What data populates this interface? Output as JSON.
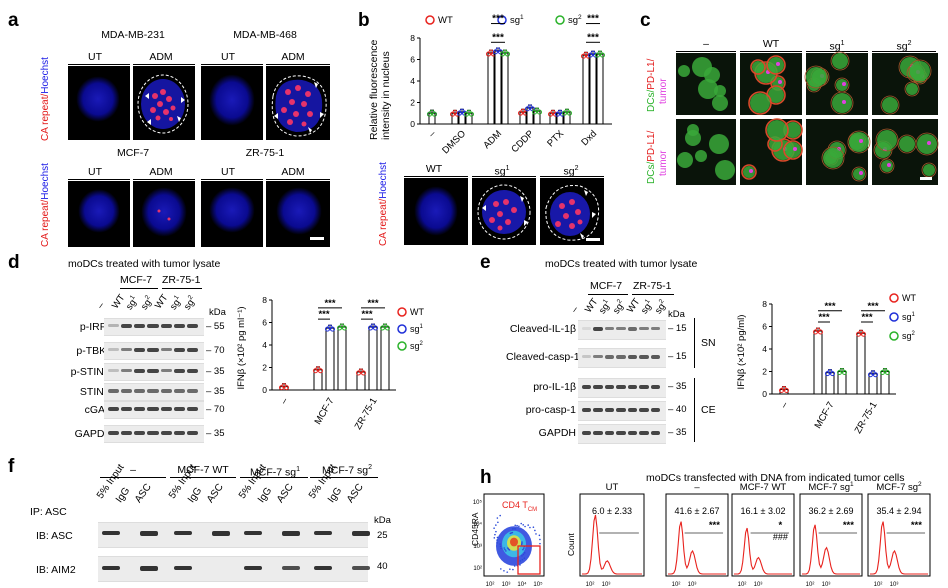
{
  "panel_a": {
    "label": "a",
    "line_mda231": "MDA-MB-231",
    "line_mda468": "MDA-MB-468",
    "line_mcf7": "MCF-7",
    "line_zr751": "ZR-75-1",
    "cond_ut": "UT",
    "cond_adm": "ADM",
    "ylab_red": "CA repeat/",
    "ylab_blue": "Hoechst"
  },
  "panel_b": {
    "label": "b",
    "legend": [
      "WT",
      "sg1",
      "sg2"
    ],
    "legend_sup": [
      "",
      "1",
      "2"
    ],
    "legend_base": [
      "WT",
      "sg",
      "sg"
    ],
    "ylabel_line1": "Relative fluorescence",
    "ylabel_line2": "intensity in nucleus",
    "yticks": [
      "0",
      "2",
      "4",
      "6",
      "8"
    ],
    "sig": "***",
    "img_labels": [
      "WT",
      "sg",
      "sg"
    ],
    "img_sups": [
      "",
      "1",
      "2"
    ],
    "ylab_red": "CA repeat/",
    "ylab_blue": "Hoechst"
  },
  "chart_data": [
    {
      "type": "bar",
      "panel": "b",
      "categories": [
        "–",
        "DMSO",
        "ADM",
        "CDDP",
        "PTX",
        "Dxd"
      ],
      "series": [
        {
          "name": "WT",
          "values": [
            1.0,
            1.0,
            6.6,
            1.1,
            1.0,
            6.4
          ]
        },
        {
          "name": "sg1",
          "values": [
            1.0,
            1.1,
            6.8,
            1.5,
            1.0,
            6.5
          ]
        },
        {
          "name": "sg2",
          "values": [
            1.0,
            1.0,
            6.6,
            1.2,
            1.1,
            6.5
          ]
        }
      ],
      "ylabel": "Relative fluorescence intensity in nucleus",
      "ylim": [
        0,
        8
      ],
      "colors": [
        "#e8231e",
        "#1f2fd8",
        "#2ab22a"
      ]
    },
    {
      "type": "bar",
      "panel": "d",
      "categories": [
        "–",
        "MCF-7",
        "ZR-75-1"
      ],
      "series": [
        {
          "name": "WT",
          "values": [
            0.3,
            1.8,
            1.6
          ]
        },
        {
          "name": "sg1",
          "values": [
            null,
            5.5,
            5.6
          ]
        },
        {
          "name": "sg2",
          "values": [
            null,
            5.6,
            5.6
          ]
        }
      ],
      "ylabel": "IFNβ (×10² pg ml⁻¹)",
      "ylim": [
        0,
        8
      ],
      "colors": [
        "#e8231e",
        "#1f2fd8",
        "#2ab22a"
      ]
    },
    {
      "type": "bar",
      "panel": "e",
      "categories": [
        "–",
        "MCF-7",
        "ZR-75-1"
      ],
      "series": [
        {
          "name": "WT",
          "values": [
            0.4,
            5.6,
            5.4
          ]
        },
        {
          "name": "sg1",
          "values": [
            null,
            1.9,
            1.8
          ]
        },
        {
          "name": "sg2",
          "values": [
            null,
            2.0,
            2.0
          ]
        }
      ],
      "ylabel": "IFNβ (×10² pg/ml)",
      "ylim": [
        0,
        8
      ],
      "colors": [
        "#e8231e",
        "#1f2fd8",
        "#2ab22a"
      ]
    }
  ],
  "panel_c": {
    "label": "c",
    "cols": [
      "–",
      "WT",
      "sg",
      "sg"
    ],
    "col_sups": [
      "",
      "",
      "1",
      "2"
    ],
    "ylab_dcs": "DCs/",
    "ylab_pdl1": "PD-L1/",
    "ylab_tumor": "tumor"
  },
  "panel_d": {
    "label": "d",
    "title": "moDCs treated with tumor lysate",
    "groups": [
      "MCF-7",
      "ZR-75-1"
    ],
    "lanes": [
      "–",
      "WT",
      "sg1",
      "sg2",
      "WT",
      "sg1",
      "sg2"
    ],
    "kda": "kDa",
    "blots": [
      {
        "name": "p-IRF3",
        "kda": "55"
      },
      {
        "name": "p-TBK1",
        "kda": "70"
      },
      {
        "name": "p-STING",
        "kda": "35"
      },
      {
        "name": "STING",
        "kda": "35"
      },
      {
        "name": "cGAS",
        "kda": "70"
      },
      {
        "name": "GAPDH",
        "kda": "35"
      }
    ],
    "legend": [
      "WT",
      "sg1",
      "sg2"
    ],
    "ylabel": "IFNβ (×10² pg ml⁻¹)",
    "yticks": [
      "0",
      "2",
      "4",
      "6",
      "8"
    ],
    "xcats": [
      "–",
      "MCF-7",
      "ZR-75-1"
    ],
    "sig": "***"
  },
  "panel_e": {
    "label": "e",
    "title": "moDCs treated with tumor lysate",
    "groups": [
      "MCF-7",
      "ZR-75-1"
    ],
    "lanes": [
      "–",
      "WT",
      "sg1",
      "sg2",
      "WT",
      "sg1",
      "sg2"
    ],
    "kda": "kDa",
    "blots": [
      {
        "name": "Cleaved-IL-1β",
        "kda": "15"
      },
      {
        "name": "Cleaved-casp-1",
        "kda": "15"
      },
      {
        "name": "pro-IL-1β",
        "kda": "35"
      },
      {
        "name": "pro-casp-1",
        "kda": "40"
      },
      {
        "name": "GAPDH",
        "kda": "35"
      }
    ],
    "sn": "SN",
    "ce": "CE",
    "legend": [
      "WT",
      "sg1",
      "sg2"
    ],
    "ylabel": "IFNβ (×10² pg/ml)",
    "yticks": [
      "0",
      "2",
      "4",
      "6",
      "8"
    ],
    "xcats": [
      "–",
      "MCF-7",
      "ZR-75-1"
    ],
    "sig": "***"
  },
  "panel_f": {
    "label": "f",
    "groups": [
      "–",
      "MCF-7 WT",
      "MCF-7 sg",
      "MCF-7 sg"
    ],
    "group_sups": [
      "",
      "",
      "1",
      "2"
    ],
    "lanes": [
      "5% Input",
      "IgG",
      "ASC"
    ],
    "ip": "IP: ASC",
    "ib1": "IB: ASC",
    "ib2": "IB: AIM2",
    "kda": "kDa",
    "kda1": "25",
    "kda2": "40"
  },
  "panel_h": {
    "label": "h",
    "title": "moDCs transfected with DNA from indicated tumor cells",
    "gate": "CD4 T",
    "gate_sub": "CM",
    "ylab_scatter": "CD45RA",
    "ylab_hist": "Count",
    "hist_titles": [
      "UT",
      "–",
      "MCF-7 WT",
      "MCF-7 sg",
      "MCF-7 sg"
    ],
    "hist_sups": [
      "",
      "",
      "",
      "1",
      "2"
    ],
    "values": [
      "6.0 ± 2.33",
      "41.6 ± 2.67",
      "16.1 ± 3.02",
      "36.2 ± 2.69",
      "35.4 ± 2.94"
    ],
    "stars": [
      "",
      "***",
      "*",
      "***",
      "***"
    ],
    "hashes": [
      "",
      "",
      "###",
      "",
      ""
    ],
    "ticks": [
      "10²",
      "10³"
    ],
    "scatter_ticks": [
      "10²",
      "10³",
      "10⁴",
      "10⁵"
    ]
  }
}
